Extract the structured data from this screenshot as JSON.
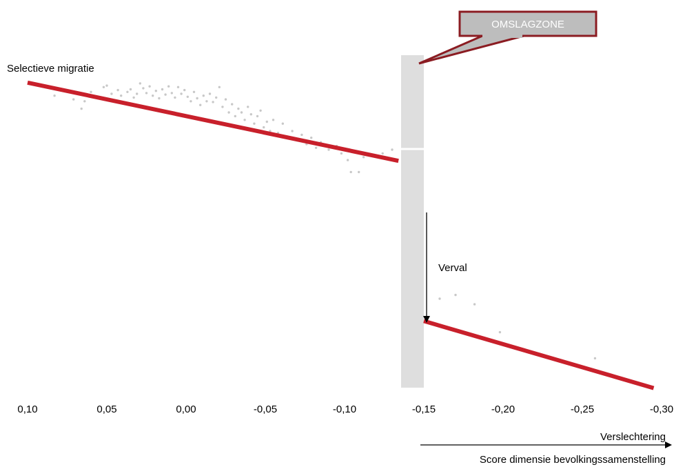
{
  "chart_data": {
    "type": "scatter",
    "ylabel": "Selectieve migratie",
    "xlabel": "Score dimensie bevolkingssamenstelling",
    "x_direction_label": "Verslechtering",
    "x_reversed": true,
    "xlim": [
      0.1,
      -0.3
    ],
    "x_ticks": [
      "0,10",
      "0,05",
      "0,00",
      "-0,05",
      "-0,10",
      "-0,15",
      "-0,20",
      "-0,25",
      "-0,30"
    ],
    "y_axis_values_shown": false,
    "grid": false,
    "legend": "none",
    "threshold_zone": {
      "label": "OMSLAGZONE",
      "x_from": -0.137,
      "x_to": -0.151
    },
    "drop_annotation": "Verval",
    "trend_lines": [
      {
        "x": [
          0.1,
          -0.134
        ],
        "y": [
          0.88,
          0.67
        ]
      },
      {
        "x": [
          -0.15,
          -0.295
        ],
        "y": [
          0.24,
          0.06
        ]
      }
    ],
    "points": [
      [
        0.083,
        0.845
      ],
      [
        0.071,
        0.835
      ],
      [
        0.066,
        0.81
      ],
      [
        0.064,
        0.83
      ],
      [
        0.06,
        0.855
      ],
      [
        0.056,
        0.84
      ],
      [
        0.052,
        0.868
      ],
      [
        0.05,
        0.872
      ],
      [
        0.047,
        0.85
      ],
      [
        0.045,
        0.832
      ],
      [
        0.043,
        0.86
      ],
      [
        0.041,
        0.845
      ],
      [
        0.039,
        0.825
      ],
      [
        0.037,
        0.855
      ],
      [
        0.035,
        0.862
      ],
      [
        0.033,
        0.84
      ],
      [
        0.031,
        0.85
      ],
      [
        0.029,
        0.878
      ],
      [
        0.027,
        0.865
      ],
      [
        0.025,
        0.852
      ],
      [
        0.023,
        0.87
      ],
      [
        0.021,
        0.845
      ],
      [
        0.019,
        0.858
      ],
      [
        0.017,
        0.838
      ],
      [
        0.015,
        0.862
      ],
      [
        0.013,
        0.848
      ],
      [
        0.011,
        0.87
      ],
      [
        0.009,
        0.852
      ],
      [
        0.007,
        0.84
      ],
      [
        0.005,
        0.868
      ],
      [
        0.003,
        0.85
      ],
      [
        0.001,
        0.86
      ],
      [
        -0.001,
        0.842
      ],
      [
        -0.003,
        0.83
      ],
      [
        -0.005,
        0.855
      ],
      [
        -0.007,
        0.838
      ],
      [
        -0.009,
        0.82
      ],
      [
        -0.011,
        0.845
      ],
      [
        -0.013,
        0.83
      ],
      [
        -0.015,
        0.85
      ],
      [
        -0.017,
        0.828
      ],
      [
        -0.019,
        0.84
      ],
      [
        -0.021,
        0.868
      ],
      [
        -0.023,
        0.815
      ],
      [
        -0.025,
        0.835
      ],
      [
        -0.027,
        0.8
      ],
      [
        -0.029,
        0.822
      ],
      [
        -0.031,
        0.79
      ],
      [
        -0.033,
        0.81
      ],
      [
        -0.035,
        0.8
      ],
      [
        -0.037,
        0.78
      ],
      [
        -0.039,
        0.815
      ],
      [
        -0.041,
        0.795
      ],
      [
        -0.043,
        0.77
      ],
      [
        -0.045,
        0.79
      ],
      [
        -0.047,
        0.805
      ],
      [
        -0.049,
        0.76
      ],
      [
        -0.051,
        0.775
      ],
      [
        -0.053,
        0.75
      ],
      [
        -0.055,
        0.78
      ],
      [
        -0.058,
        0.745
      ],
      [
        -0.061,
        0.77
      ],
      [
        -0.064,
        0.735
      ],
      [
        -0.067,
        0.75
      ],
      [
        -0.07,
        0.725
      ],
      [
        -0.073,
        0.74
      ],
      [
        -0.076,
        0.715
      ],
      [
        -0.079,
        0.732
      ],
      [
        -0.082,
        0.705
      ],
      [
        -0.085,
        0.72
      ],
      [
        -0.09,
        0.7
      ],
      [
        -0.095,
        0.71
      ],
      [
        -0.098,
        0.69
      ],
      [
        -0.102,
        0.672
      ],
      [
        -0.104,
        0.64
      ],
      [
        -0.109,
        0.64
      ],
      [
        -0.112,
        0.68
      ],
      [
        -0.118,
        0.685
      ],
      [
        -0.124,
        0.69
      ],
      [
        -0.13,
        0.7
      ],
      [
        -0.16,
        0.3
      ],
      [
        -0.17,
        0.31
      ],
      [
        -0.182,
        0.285
      ],
      [
        -0.198,
        0.21
      ],
      [
        -0.258,
        0.14
      ]
    ]
  },
  "colors": {
    "trend": "#c8202b",
    "points": "#c8c8c8",
    "zone": "#dedede",
    "callout_fill": "#bdbdbd",
    "callout_border": "#8b1c22",
    "callout_text": "#ffffff"
  }
}
